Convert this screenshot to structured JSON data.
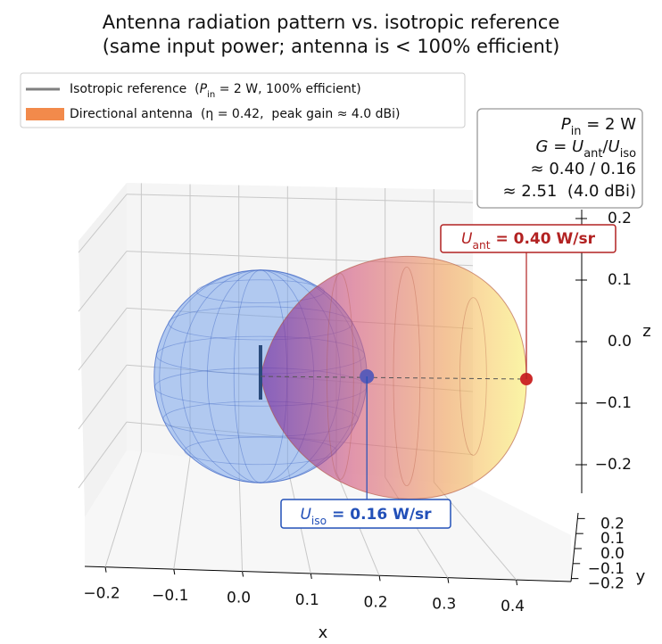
{
  "chart_data": {
    "type": "radiation-3d",
    "title": [
      "Antenna radiation pattern vs. isotropic reference",
      "(same input power; antenna is < 100% efficient)"
    ],
    "series": [
      {
        "name": [
          {
            "text": "Isotropic reference  (",
            "style": "normal"
          },
          {
            "text": "P",
            "style": "italic"
          },
          {
            "text": "in",
            "style": "sub"
          },
          {
            "text": " = 2 W, 100% efficient)",
            "style": "normal"
          }
        ],
        "legend_marker": "line",
        "legend_color": "#808080",
        "color": "#6d9eeb",
        "edge_color": "#3b63c4",
        "value": 0.16,
        "label": [
          {
            "text": "U",
            "style": "italic"
          },
          {
            "text": "iso",
            "style": "sub"
          },
          {
            "text": " = 0.16 W/sr",
            "style": "normal"
          }
        ],
        "label_color": "#2250b8"
      },
      {
        "name": [
          {
            "text": "Directional antenna  (η = 0.42,  peak gain ≈ 4.0 dBi)",
            "style": "normal"
          }
        ],
        "legend_marker": "patch",
        "legend_color": "#f28a4b",
        "color": "#f6d860",
        "edge_color": "#c0392b",
        "value": 0.4,
        "label": [
          {
            "text": "U",
            "style": "italic"
          },
          {
            "text": "ant",
            "style": "sub"
          },
          {
            "text": " = 0.40 W/sr",
            "style": "normal"
          }
        ],
        "label_color": "#b22222"
      }
    ],
    "info": [
      [
        {
          "text": "P",
          "style": "italic"
        },
        {
          "text": "in",
          "style": "sub"
        },
        {
          "text": " = 2 W",
          "style": "normal"
        }
      ],
      [
        {
          "text": "G",
          "style": "italic"
        },
        {
          "text": " = ",
          "style": "normal"
        },
        {
          "text": "U",
          "style": "italic"
        },
        {
          "text": "ant",
          "style": "sub"
        },
        {
          "text": "/",
          "style": "normal"
        },
        {
          "text": "U",
          "style": "italic"
        },
        {
          "text": "iso",
          "style": "sub"
        }
      ],
      [
        {
          "text": "≈ 0.40 / 0.16",
          "style": "normal"
        }
      ],
      [
        {
          "text": "≈ 2.51  (4.0 dBi)",
          "style": "normal"
        }
      ]
    ],
    "xlabel": "x",
    "ylabel": "y",
    "zlabel": "z",
    "xlim": [
      -0.23,
      0.48
    ],
    "xticks": [
      {
        "value": -0.2,
        "label": "−0.2"
      },
      {
        "value": -0.1,
        "label": "−0.1"
      },
      {
        "value": 0,
        "label": "0.0"
      },
      0.1,
      0.2,
      0.3,
      0.4
    ],
    "ylim": [
      -0.22,
      0.22
    ],
    "yticks": [
      0.2,
      0.1,
      {
        "value": 0,
        "label": "0.0"
      },
      {
        "value": -0.1,
        "label": "−0.1"
      },
      {
        "value": -0.2,
        "label": "−0.2"
      }
    ],
    "zlim": [
      -0.25,
      0.22
    ],
    "zticks": [
      0.2,
      0.1,
      {
        "value": 0,
        "label": "0.0"
      },
      {
        "value": -0.1,
        "label": "−0.1"
      },
      {
        "value": -0.2,
        "label": "−0.2"
      }
    ],
    "grid": true
  }
}
